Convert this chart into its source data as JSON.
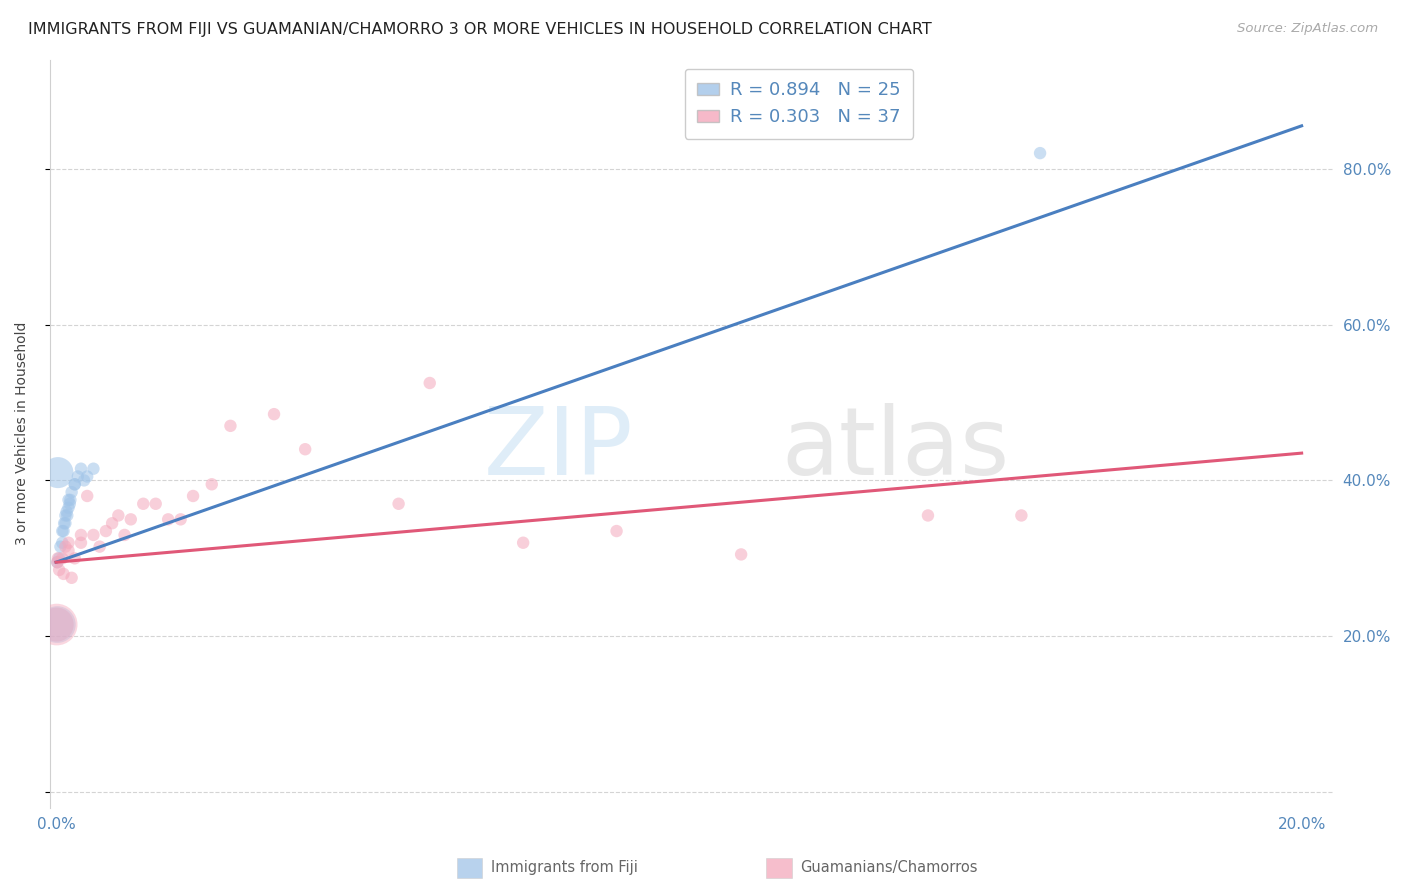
{
  "title": "IMMIGRANTS FROM FIJI VS GUAMANIAN/CHAMORRO 3 OR MORE VEHICLES IN HOUSEHOLD CORRELATION CHART",
  "source": "Source: ZipAtlas.com",
  "ylabel": "3 or more Vehicles in Household",
  "xlim": [
    -0.001,
    0.205
  ],
  "ylim": [
    -0.02,
    0.94
  ],
  "ytick_positions": [
    0.0,
    0.2,
    0.4,
    0.6,
    0.8
  ],
  "ytick_labels_right": [
    "",
    "20.0%",
    "40.0%",
    "60.0%",
    "80.0%"
  ],
  "xtick_positions": [
    0.0,
    0.04,
    0.08,
    0.12,
    0.16,
    0.2
  ],
  "xtick_labels": [
    "0.0%",
    "",
    "",
    "",
    "",
    "20.0%"
  ],
  "grid_color": "#d0d0d0",
  "background_color": "#ffffff",
  "blue_color": "#a0c4e8",
  "pink_color": "#f4a8bc",
  "blue_line_color": "#4a7fc0",
  "pink_line_color": "#e05878",
  "blue_line_x": [
    0.0,
    0.2
  ],
  "blue_line_y": [
    0.295,
    0.855
  ],
  "pink_line_x": [
    0.0,
    0.2
  ],
  "pink_line_y": [
    0.295,
    0.435
  ],
  "blue_points_x": [
    0.0002,
    0.0005,
    0.0007,
    0.001,
    0.001,
    0.0012,
    0.0013,
    0.0015,
    0.0015,
    0.0017,
    0.0018,
    0.002,
    0.002,
    0.0022,
    0.0023,
    0.0025,
    0.003,
    0.003,
    0.0035,
    0.004,
    0.0045,
    0.005,
    0.006,
    0.158,
    0.0003
  ],
  "blue_points_y": [
    0.295,
    0.3,
    0.315,
    0.32,
    0.335,
    0.335,
    0.345,
    0.345,
    0.355,
    0.36,
    0.355,
    0.365,
    0.375,
    0.37,
    0.375,
    0.385,
    0.395,
    0.395,
    0.405,
    0.415,
    0.4,
    0.405,
    0.415,
    0.82,
    0.41
  ],
  "blue_sizes": [
    80,
    80,
    80,
    80,
    80,
    80,
    80,
    80,
    80,
    80,
    80,
    80,
    80,
    80,
    80,
    80,
    80,
    80,
    80,
    80,
    80,
    80,
    80,
    80,
    500
  ],
  "pink_points_x": [
    0.0002,
    0.0003,
    0.0005,
    0.001,
    0.0012,
    0.0015,
    0.002,
    0.002,
    0.0025,
    0.003,
    0.004,
    0.004,
    0.005,
    0.006,
    0.007,
    0.008,
    0.009,
    0.01,
    0.011,
    0.012,
    0.014,
    0.016,
    0.018,
    0.02,
    0.022,
    0.025,
    0.028,
    0.035,
    0.04,
    0.055,
    0.06,
    0.075,
    0.09,
    0.11,
    0.14,
    0.155,
    0.0001
  ],
  "pink_points_y": [
    0.295,
    0.3,
    0.285,
    0.3,
    0.28,
    0.315,
    0.31,
    0.32,
    0.275,
    0.3,
    0.32,
    0.33,
    0.38,
    0.33,
    0.315,
    0.335,
    0.345,
    0.355,
    0.33,
    0.35,
    0.37,
    0.37,
    0.35,
    0.35,
    0.38,
    0.395,
    0.47,
    0.485,
    0.44,
    0.37,
    0.525,
    0.32,
    0.335,
    0.305,
    0.355,
    0.355,
    0.215
  ],
  "pink_sizes": [
    80,
    80,
    80,
    80,
    80,
    80,
    80,
    80,
    80,
    80,
    80,
    80,
    80,
    80,
    80,
    80,
    80,
    80,
    80,
    80,
    80,
    80,
    80,
    80,
    80,
    80,
    80,
    80,
    80,
    80,
    80,
    80,
    80,
    80,
    80,
    80,
    600
  ],
  "legend_R1": "R = 0.894",
  "legend_N1": "N = 25",
  "legend_R2": "R = 0.303",
  "legend_N2": "N = 37",
  "legend_label1": "Immigrants from Fiji",
  "legend_label2": "Guamanians/Chamorros",
  "watermark_zip": "ZIP",
  "watermark_atlas": "atlas",
  "marker_alpha": 0.55,
  "title_fontsize": 11.5,
  "axis_fontsize": 11,
  "legend_fontsize": 13
}
